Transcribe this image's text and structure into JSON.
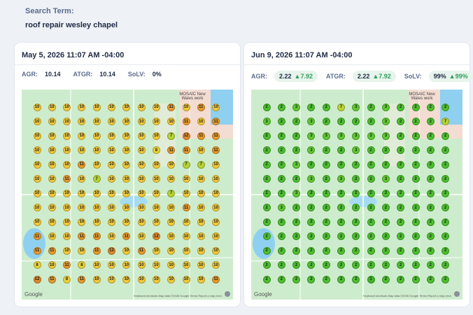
{
  "search": {
    "label": "Search Term:",
    "term": "roof repair wesley chapel"
  },
  "cards": [
    {
      "date": "May 5, 2026 11:07 AM -04:00",
      "agr_label": "AGR:",
      "agr": "10.14",
      "atgr_label": "ATGR:",
      "atgr": "10.14",
      "solv_label": "SoLV:",
      "solv": "0%",
      "map_label": "MOSAIC New Wales work",
      "map_brand": "Google",
      "map_attrib": "Keyboard shortcuts  Map data ©2026 Google  Terms  Report a map error",
      "grid": [
        [
          "10",
          "10",
          "10",
          "10",
          "10",
          "10",
          "10",
          "10",
          "10",
          "11",
          "10",
          "11",
          "10"
        ],
        [
          "10",
          "10",
          "10",
          "10",
          "10",
          "10",
          "10",
          "10",
          "10",
          "10",
          "11",
          "10",
          "11"
        ],
        [
          "10",
          "10",
          "10",
          "10",
          "10",
          "10",
          "10",
          "10",
          "10",
          "7",
          "12",
          "11",
          "11"
        ],
        [
          "10",
          "10",
          "10",
          "10",
          "10",
          "10",
          "10",
          "10",
          "8",
          "11",
          "11",
          "10",
          "11"
        ],
        [
          "10",
          "10",
          "10",
          "11",
          "10",
          "10",
          "10",
          "10",
          "10",
          "10",
          "7",
          "7",
          "10"
        ],
        [
          "10",
          "10",
          "11",
          "10",
          "7",
          "10",
          "10",
          "10",
          "10",
          "10",
          "10",
          "10",
          "10"
        ],
        [
          "10",
          "10",
          "10",
          "10",
          "10",
          "10",
          "10",
          "10",
          "10",
          "7",
          "10",
          "10",
          "10"
        ],
        [
          "10",
          "10",
          "10",
          "10",
          "10",
          "10",
          "10",
          "10",
          "10",
          "10",
          "11",
          "10",
          "10"
        ],
        [
          "10",
          "10",
          "10",
          "10",
          "10",
          "10",
          "10",
          "10",
          "10",
          "10",
          "10",
          "10",
          "10"
        ],
        [
          "11",
          "10",
          "10",
          "11",
          "11",
          "10",
          "11",
          "10",
          "12",
          "10",
          "10",
          "10",
          "10"
        ],
        [
          "11",
          "11",
          "10",
          "10",
          "11",
          "12",
          "10",
          "11",
          "10",
          "10",
          "10",
          "10",
          "10"
        ],
        [
          "8",
          "10",
          "11",
          "8",
          "10",
          "10",
          "10",
          "10",
          "10",
          "10",
          "10",
          "10",
          "10"
        ],
        [
          "12",
          "11",
          "8",
          "11",
          "10",
          "10",
          "10",
          "10",
          "10",
          "10",
          "10",
          "10",
          "11"
        ]
      ],
      "colors": {
        "10": "#f0c93a",
        "11": "#e59a2c",
        "12": "#de8a2a",
        "8": "#e8d23a",
        "7": "#b7d334"
      }
    },
    {
      "date": "Jun 9, 2026 11:07 AM -04:00",
      "agr_label": "AGR:",
      "agr": "2.22",
      "agr_delta": "7.92",
      "atgr_label": "ATGR:",
      "atgr": "2.22",
      "atgr_delta": "7.92",
      "solv_label": "SoLV:",
      "solv": "99%",
      "solv_delta": "99%",
      "map_label": "MOSAIC New Wales work",
      "map_brand": "Google",
      "map_attrib": "Keyboard shortcuts  Map data ©2026 Google  Terms  Report a map error",
      "grid": [
        [
          "2",
          "2",
          "3",
          "2",
          "2",
          "7",
          "3",
          "2",
          "3",
          "2",
          "2",
          "2",
          "2"
        ],
        [
          "3",
          "2",
          "2",
          "3",
          "2",
          "2",
          "2",
          "2",
          "3",
          "2",
          "2",
          "2",
          "7"
        ],
        [
          "2",
          "2",
          "2",
          "3",
          "3",
          "3",
          "3",
          "3",
          "3",
          "2",
          "2",
          "2",
          "2"
        ],
        [
          "2",
          "2",
          "2",
          "3",
          "2",
          "2",
          "3",
          "2",
          "2",
          "2",
          "2",
          "2",
          "2"
        ],
        [
          "2",
          "2",
          "3",
          "2",
          "2",
          "2",
          "2",
          "2",
          "2",
          "2",
          "2",
          "2",
          "2"
        ],
        [
          "2",
          "2",
          "2",
          "3",
          "2",
          "3",
          "2",
          "2",
          "3",
          "2",
          "2",
          "2",
          "2"
        ],
        [
          "2",
          "2",
          "3",
          "2",
          "2",
          "2",
          "2",
          "2",
          "2",
          "2",
          "2",
          "2",
          "2"
        ],
        [
          "2",
          "3",
          "2",
          "2",
          "2",
          "2",
          "2",
          "2",
          "2",
          "2",
          "2",
          "2",
          "2"
        ],
        [
          "2",
          "2",
          "2",
          "2",
          "2",
          "2",
          "2",
          "2",
          "2",
          "2",
          "2",
          "2",
          "2"
        ],
        [
          "2",
          "2",
          "2",
          "2",
          "2",
          "2",
          "2",
          "2",
          "2",
          "2",
          "2",
          "2",
          "2"
        ],
        [
          "2",
          "2",
          "2",
          "2",
          "2",
          "2",
          "2",
          "2",
          "2",
          "2",
          "2",
          "2",
          "2"
        ],
        [
          "2",
          "2",
          "2",
          "2",
          "2",
          "2",
          "2",
          "2",
          "2",
          "2",
          "2",
          "2",
          "2"
        ],
        [
          "2",
          "2",
          "2",
          "2",
          "2",
          "2",
          "2",
          "1",
          "2",
          "2",
          "2",
          "2",
          "2"
        ]
      ],
      "colors": {
        "1": "#3fb62a",
        "2": "#4cbf2e",
        "3": "#5fc832",
        "7": "#b7d334"
      }
    }
  ]
}
